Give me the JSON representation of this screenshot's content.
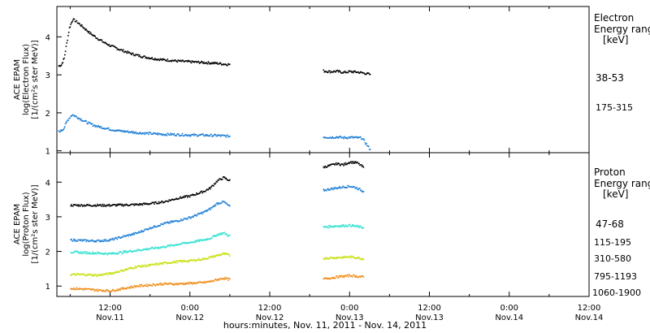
{
  "xlabel": "hours:minutes, Nov. 11, 2011 - Nov. 14, 2011",
  "x_ticks": [
    {
      "time": "12:00",
      "date": "Nov.11",
      "h": 12
    },
    {
      "time": "0:00",
      "date": "Nov.12",
      "h": 24
    },
    {
      "time": "12:00",
      "date": "Nov.12",
      "h": 36
    },
    {
      "time": "0:00",
      "date": "Nov.13",
      "h": 48
    },
    {
      "time": "12:00",
      "date": "Nov.13",
      "h": 60
    },
    {
      "time": "0:00",
      "date": "Nov.14",
      "h": 72
    },
    {
      "time": "12:00",
      "date": "Nov.14",
      "h": 84
    }
  ],
  "colors": {
    "black": "#000000",
    "blue": "#1e7fd6",
    "cyan": "#2ee0cf",
    "yellow": "#c8e010",
    "orange": "#f08a14"
  },
  "chart_data": [
    {
      "type": "scatter",
      "ylabel": [
        "ACE EPAM",
        "log(Electron Flux)",
        "[1/(cm²s ster MeV)]"
      ],
      "ylim": [
        0.95,
        4.8
      ],
      "yticks": [
        1,
        2,
        3,
        4
      ],
      "xlim": [
        4,
        84
      ],
      "legend_title": [
        "Electron",
        "Energy range",
        "[keV]"
      ],
      "series": [
        {
          "name": "38-53",
          "color": "#000000",
          "points": [
            [
              4.2,
              3.25
            ],
            [
              4.6,
              3.28
            ],
            [
              5.0,
              3.45
            ],
            [
              5.4,
              3.85
            ],
            [
              5.8,
              4.25
            ],
            [
              6.3,
              4.48
            ],
            [
              7,
              4.4
            ],
            [
              8,
              4.25
            ],
            [
              9,
              4.1
            ],
            [
              10,
              3.98
            ],
            [
              11,
              3.87
            ],
            [
              12,
              3.78
            ],
            [
              13,
              3.71
            ],
            [
              14,
              3.64
            ],
            [
              15,
              3.58
            ],
            [
              16,
              3.53
            ],
            [
              17,
              3.49
            ],
            [
              18,
              3.46
            ],
            [
              19,
              3.43
            ],
            [
              20,
              3.41
            ],
            [
              21,
              3.4
            ],
            [
              22,
              3.38
            ],
            [
              23,
              3.37
            ],
            [
              24,
              3.36
            ],
            [
              25,
              3.35
            ],
            [
              26,
              3.34
            ],
            [
              27,
              3.33
            ],
            [
              28,
              3.32
            ],
            [
              29,
              3.3
            ],
            [
              30,
              3.29
            ],
            [
              44,
              3.12
            ],
            [
              45,
              3.1
            ],
            [
              46,
              3.11
            ],
            [
              47,
              3.08
            ],
            [
              48,
              3.1
            ],
            [
              49,
              3.09
            ],
            [
              49.8,
              3.07
            ],
            [
              51,
              3.03
            ]
          ]
        },
        {
          "name": "175-315",
          "color": "#1e7fd6",
          "points": [
            [
              4.2,
              1.52
            ],
            [
              4.6,
              1.55
            ],
            [
              5.0,
              1.62
            ],
            [
              5.5,
              1.82
            ],
            [
              6.2,
              1.97
            ],
            [
              7,
              1.9
            ],
            [
              8,
              1.8
            ],
            [
              9,
              1.72
            ],
            [
              10,
              1.66
            ],
            [
              11,
              1.62
            ],
            [
              12,
              1.58
            ],
            [
              13,
              1.55
            ],
            [
              14,
              1.53
            ],
            [
              15,
              1.51
            ],
            [
              16,
              1.49
            ],
            [
              17,
              1.48
            ],
            [
              18,
              1.47
            ],
            [
              19,
              1.46
            ],
            [
              20,
              1.45
            ],
            [
              21,
              1.45
            ],
            [
              22,
              1.44
            ],
            [
              23,
              1.44
            ],
            [
              24,
              1.43
            ],
            [
              25,
              1.43
            ],
            [
              26,
              1.43
            ],
            [
              27,
              1.42
            ],
            [
              28,
              1.42
            ],
            [
              29,
              1.41
            ],
            [
              30,
              1.4
            ],
            [
              44,
              1.38
            ],
            [
              45,
              1.37
            ],
            [
              46,
              1.38
            ],
            [
              47,
              1.36
            ],
            [
              48,
              1.37
            ],
            [
              49,
              1.36
            ],
            [
              49.8,
              1.35
            ],
            [
              51,
              1.05
            ]
          ]
        }
      ]
    },
    {
      "type": "scatter",
      "ylabel": [
        "ACE EPAM",
        "log(Proton Flux)",
        "[1/(cm²s ster MeV)]"
      ],
      "ylim": [
        0.7,
        4.85
      ],
      "yticks": [
        1,
        2,
        3,
        4
      ],
      "xlim": [
        4,
        84
      ],
      "legend_title": [
        "Proton",
        "Energy range",
        "[keV]"
      ],
      "series": [
        {
          "name": "47-68",
          "color": "#000000",
          "points": [
            [
              6,
              3.35
            ],
            [
              8,
              3.35
            ],
            [
              10,
              3.35
            ],
            [
              12,
              3.35
            ],
            [
              14,
              3.36
            ],
            [
              16,
              3.37
            ],
            [
              18,
              3.4
            ],
            [
              20,
              3.45
            ],
            [
              22,
              3.55
            ],
            [
              24,
              3.62
            ],
            [
              26,
              3.75
            ],
            [
              27,
              3.85
            ],
            [
              28,
              4.05
            ],
            [
              29,
              4.15
            ],
            [
              30,
              4.05
            ],
            [
              44,
              4.45
            ],
            [
              45,
              4.5
            ],
            [
              46,
              4.55
            ],
            [
              47,
              4.52
            ],
            [
              48,
              4.6
            ],
            [
              49,
              4.58
            ],
            [
              50,
              4.45
            ]
          ]
        },
        {
          "name": "115-195",
          "color": "#1e7fd6",
          "points": [
            [
              6,
              2.35
            ],
            [
              8,
              2.33
            ],
            [
              10,
              2.32
            ],
            [
              12,
              2.35
            ],
            [
              14,
              2.45
            ],
            [
              16,
              2.55
            ],
            [
              18,
              2.7
            ],
            [
              20,
              2.82
            ],
            [
              22,
              2.9
            ],
            [
              24,
              3.0
            ],
            [
              26,
              3.15
            ],
            [
              27,
              3.25
            ],
            [
              28,
              3.4
            ],
            [
              29,
              3.45
            ],
            [
              30,
              3.3
            ],
            [
              44,
              3.78
            ],
            [
              45,
              3.82
            ],
            [
              46,
              3.85
            ],
            [
              47,
              3.88
            ],
            [
              48,
              3.9
            ],
            [
              49,
              3.85
            ],
            [
              50,
              3.75
            ]
          ]
        },
        {
          "name": "310-580",
          "color": "#2ee0cf",
          "points": [
            [
              6,
              2.0
            ],
            [
              8,
              1.98
            ],
            [
              10,
              1.97
            ],
            [
              12,
              1.95
            ],
            [
              14,
              2.0
            ],
            [
              16,
              2.05
            ],
            [
              18,
              2.1
            ],
            [
              20,
              2.15
            ],
            [
              22,
              2.22
            ],
            [
              24,
              2.28
            ],
            [
              26,
              2.35
            ],
            [
              27,
              2.4
            ],
            [
              28,
              2.5
            ],
            [
              29,
              2.55
            ],
            [
              30,
              2.45
            ],
            [
              44,
              2.72
            ],
            [
              45,
              2.74
            ],
            [
              46,
              2.75
            ],
            [
              47,
              2.76
            ],
            [
              48,
              2.77
            ],
            [
              49,
              2.74
            ],
            [
              50,
              2.7
            ]
          ]
        },
        {
          "name": "795-1193",
          "color": "#c8e010",
          "points": [
            [
              6,
              1.35
            ],
            [
              8,
              1.35
            ],
            [
              10,
              1.33
            ],
            [
              12,
              1.38
            ],
            [
              14,
              1.48
            ],
            [
              16,
              1.58
            ],
            [
              18,
              1.62
            ],
            [
              20,
              1.68
            ],
            [
              22,
              1.72
            ],
            [
              24,
              1.75
            ],
            [
              26,
              1.8
            ],
            [
              27,
              1.85
            ],
            [
              28,
              1.9
            ],
            [
              29,
              1.95
            ],
            [
              30,
              1.9
            ],
            [
              44,
              1.82
            ],
            [
              45,
              1.83
            ],
            [
              46,
              1.84
            ],
            [
              47,
              1.85
            ],
            [
              48,
              1.86
            ],
            [
              49,
              1.84
            ],
            [
              50,
              1.8
            ]
          ]
        },
        {
          "name": "1060-1900",
          "color": "#f08a14",
          "points": [
            [
              6,
              0.95
            ],
            [
              8,
              0.93
            ],
            [
              10,
              0.9
            ],
            [
              12,
              0.88
            ],
            [
              14,
              0.95
            ],
            [
              16,
              1.02
            ],
            [
              18,
              1.05
            ],
            [
              20,
              1.08
            ],
            [
              22,
              1.08
            ],
            [
              24,
              1.1
            ],
            [
              26,
              1.12
            ],
            [
              27,
              1.15
            ],
            [
              28,
              1.2
            ],
            [
              29,
              1.25
            ],
            [
              30,
              1.2
            ],
            [
              44,
              1.22
            ],
            [
              45,
              1.25
            ],
            [
              46,
              1.28
            ],
            [
              47,
              1.3
            ],
            [
              48,
              1.32
            ],
            [
              49,
              1.3
            ],
            [
              50,
              1.28
            ]
          ]
        }
      ]
    }
  ]
}
